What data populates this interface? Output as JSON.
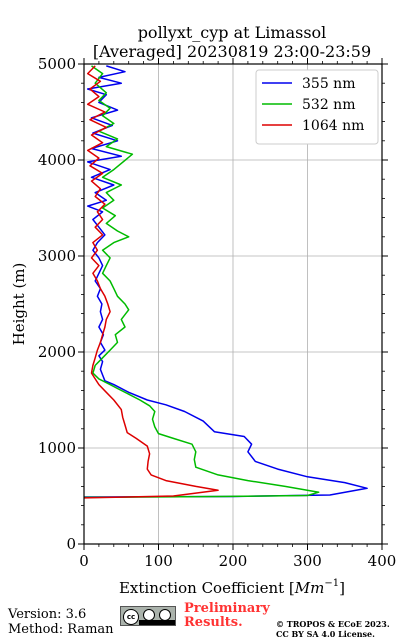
{
  "chart_data": {
    "type": "line",
    "title_line1": "pollyxt_cyp at Limassol",
    "title_line2": "[Averaged] 20230819 23:00-23:59",
    "xlabel_text": "Extinction Coefficient [",
    "xlabel_unit": "Mm",
    "xlabel_sup": "−1",
    "xlabel_end": "]",
    "ylabel": "Height (m)",
    "xlim": [
      0,
      400
    ],
    "ylim": [
      0,
      5000
    ],
    "xticks": [
      0,
      100,
      200,
      300,
      400
    ],
    "xtick_labels": [
      "0",
      "100",
      "200",
      "300",
      "400"
    ],
    "yticks": [
      0,
      1000,
      2000,
      3000,
      4000,
      5000
    ],
    "ytick_labels": [
      "0",
      "1000",
      "2000",
      "3000",
      "4000",
      "5000"
    ],
    "grid": true,
    "legend_position": "top-right",
    "series": [
      {
        "name": "355 nm",
        "color": "#0000ee",
        "points": [
          [
            0,
            490
          ],
          [
            200,
            495
          ],
          [
            330,
            510
          ],
          [
            380,
            580
          ],
          [
            350,
            640
          ],
          [
            300,
            700
          ],
          [
            260,
            780
          ],
          [
            230,
            860
          ],
          [
            220,
            960
          ],
          [
            225,
            1040
          ],
          [
            215,
            1120
          ],
          [
            175,
            1170
          ],
          [
            160,
            1280
          ],
          [
            135,
            1380
          ],
          [
            110,
            1450
          ],
          [
            85,
            1500
          ],
          [
            60,
            1580
          ],
          [
            40,
            1660
          ],
          [
            28,
            1700
          ],
          [
            25,
            1760
          ],
          [
            22,
            1820
          ],
          [
            25,
            1900
          ],
          [
            20,
            1960
          ],
          [
            28,
            2020
          ],
          [
            22,
            2100
          ],
          [
            26,
            2180
          ],
          [
            20,
            2260
          ],
          [
            25,
            2340
          ],
          [
            22,
            2420
          ],
          [
            24,
            2500
          ],
          [
            18,
            2580
          ],
          [
            22,
            2660
          ],
          [
            15,
            2740
          ],
          [
            20,
            2820
          ],
          [
            25,
            2900
          ],
          [
            20,
            2980
          ],
          [
            12,
            3060
          ],
          [
            18,
            3140
          ],
          [
            28,
            3220
          ],
          [
            20,
            3300
          ],
          [
            12,
            3380
          ],
          [
            25,
            3460
          ],
          [
            5,
            3520
          ],
          [
            30,
            3580
          ],
          [
            15,
            3660
          ],
          [
            40,
            3740
          ],
          [
            10,
            3820
          ],
          [
            35,
            3900
          ],
          [
            5,
            3980
          ],
          [
            50,
            4040
          ],
          [
            10,
            4120
          ],
          [
            45,
            4200
          ],
          [
            12,
            4280
          ],
          [
            38,
            4360
          ],
          [
            10,
            4440
          ],
          [
            45,
            4520
          ],
          [
            20,
            4600
          ],
          [
            30,
            4680
          ],
          [
            5,
            4740
          ],
          [
            50,
            4800
          ],
          [
            20,
            4860
          ],
          [
            55,
            4920
          ],
          [
            30,
            4980
          ]
        ]
      },
      {
        "name": "532 nm",
        "color": "#00bb00",
        "points": [
          [
            0,
            485
          ],
          [
            180,
            495
          ],
          [
            300,
            505
          ],
          [
            315,
            540
          ],
          [
            270,
            600
          ],
          [
            220,
            660
          ],
          [
            180,
            720
          ],
          [
            150,
            800
          ],
          [
            148,
            880
          ],
          [
            150,
            960
          ],
          [
            145,
            1040
          ],
          [
            120,
            1100
          ],
          [
            100,
            1150
          ],
          [
            95,
            1220
          ],
          [
            92,
            1300
          ],
          [
            95,
            1380
          ],
          [
            88,
            1440
          ],
          [
            75,
            1500
          ],
          [
            60,
            1560
          ],
          [
            45,
            1620
          ],
          [
            35,
            1660
          ],
          [
            20,
            1720
          ],
          [
            12,
            1780
          ],
          [
            15,
            1860
          ],
          [
            25,
            1940
          ],
          [
            35,
            2020
          ],
          [
            45,
            2100
          ],
          [
            42,
            2180
          ],
          [
            55,
            2260
          ],
          [
            50,
            2340
          ],
          [
            60,
            2440
          ],
          [
            55,
            2500
          ],
          [
            45,
            2580
          ],
          [
            40,
            2660
          ],
          [
            35,
            2740
          ],
          [
            25,
            2820
          ],
          [
            30,
            2900
          ],
          [
            35,
            2980
          ],
          [
            25,
            3060
          ],
          [
            40,
            3140
          ],
          [
            60,
            3200
          ],
          [
            45,
            3260
          ],
          [
            30,
            3340
          ],
          [
            42,
            3420
          ],
          [
            25,
            3500
          ],
          [
            40,
            3580
          ],
          [
            30,
            3660
          ],
          [
            50,
            3740
          ],
          [
            25,
            3820
          ],
          [
            40,
            3900
          ],
          [
            65,
            4060
          ],
          [
            30,
            4140
          ],
          [
            45,
            4220
          ],
          [
            20,
            4300
          ],
          [
            40,
            4380
          ],
          [
            25,
            4460
          ],
          [
            35,
            4540
          ],
          [
            20,
            4620
          ],
          [
            30,
            4700
          ],
          [
            15,
            4800
          ],
          [
            25,
            4900
          ],
          [
            10,
            4980
          ]
        ]
      },
      {
        "name": "1064 nm",
        "color": "#dd0000",
        "points": [
          [
            0,
            480
          ],
          [
            120,
            500
          ],
          [
            180,
            560
          ],
          [
            150,
            600
          ],
          [
            110,
            660
          ],
          [
            90,
            720
          ],
          [
            85,
            780
          ],
          [
            86,
            860
          ],
          [
            88,
            940
          ],
          [
            85,
            1020
          ],
          [
            70,
            1100
          ],
          [
            58,
            1160
          ],
          [
            55,
            1240
          ],
          [
            52,
            1320
          ],
          [
            50,
            1400
          ],
          [
            40,
            1500
          ],
          [
            30,
            1580
          ],
          [
            20,
            1660
          ],
          [
            15,
            1720
          ],
          [
            10,
            1780
          ],
          [
            12,
            1860
          ],
          [
            15,
            1940
          ],
          [
            18,
            2020
          ],
          [
            22,
            2100
          ],
          [
            25,
            2180
          ],
          [
            28,
            2260
          ],
          [
            30,
            2340
          ],
          [
            35,
            2420
          ],
          [
            32,
            2500
          ],
          [
            28,
            2580
          ],
          [
            22,
            2660
          ],
          [
            18,
            2740
          ],
          [
            12,
            2820
          ],
          [
            20,
            2900
          ],
          [
            10,
            2980
          ],
          [
            18,
            3060
          ],
          [
            12,
            3140
          ],
          [
            25,
            3220
          ],
          [
            15,
            3300
          ],
          [
            25,
            3380
          ],
          [
            18,
            3460
          ],
          [
            28,
            3540
          ],
          [
            15,
            3620
          ],
          [
            22,
            3700
          ],
          [
            10,
            3780
          ],
          [
            25,
            3860
          ],
          [
            8,
            3940
          ],
          [
            20,
            4020
          ],
          [
            5,
            4100
          ],
          [
            25,
            4180
          ],
          [
            10,
            4260
          ],
          [
            30,
            4340
          ],
          [
            8,
            4420
          ],
          [
            28,
            4500
          ],
          [
            5,
            4580
          ],
          [
            20,
            4660
          ],
          [
            8,
            4740
          ],
          [
            22,
            4820
          ],
          [
            5,
            4900
          ],
          [
            15,
            4980
          ]
        ]
      }
    ]
  },
  "footer": {
    "version": "Version: 3.6",
    "method": "Method: Raman",
    "cc_text": "cc",
    "prelim_line1": "Preliminary",
    "prelim_line2": "Results.",
    "copyright_line1": "© TROPOS & ECoE 2023.",
    "copyright_line2": "CC BY SA 4.0 License."
  }
}
